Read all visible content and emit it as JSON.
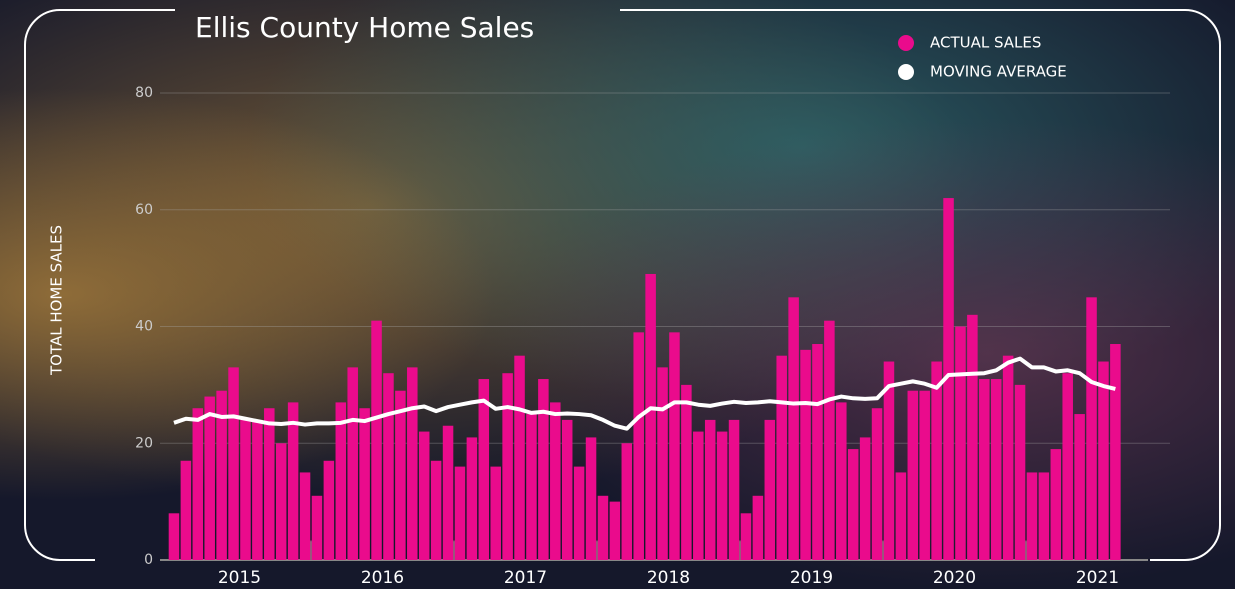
{
  "chart_data": {
    "type": "bar",
    "title": "Ellis County Home Sales",
    "y_label": "TOTAL HOME SALES",
    "categories": [
      "2015",
      null,
      null,
      null,
      null,
      null,
      null,
      null,
      null,
      null,
      null,
      null,
      "2016",
      null,
      null,
      null,
      null,
      null,
      null,
      null,
      null,
      null,
      null,
      null,
      "2017",
      null,
      null,
      null,
      null,
      null,
      null,
      null,
      null,
      null,
      null,
      null,
      "2018",
      null,
      null,
      null,
      null,
      null,
      null,
      null,
      null,
      null,
      null,
      null,
      "2019",
      null,
      null,
      null,
      null,
      null,
      null,
      null,
      null,
      null,
      null,
      null,
      "2020",
      null,
      null,
      null,
      null,
      null,
      null,
      null,
      null,
      null,
      null,
      null,
      "2021",
      null,
      null,
      null,
      null,
      null,
      null,
      null
    ],
    "series": [
      {
        "name": "ACTUAL SALES",
        "type": "bar",
        "color": "#ea0b8c",
        "values": [
          8,
          17,
          26,
          28,
          29,
          33,
          24,
          24,
          26,
          20,
          27,
          15,
          11,
          17,
          27,
          33,
          26,
          41,
          32,
          29,
          33,
          22,
          17,
          23,
          16,
          21,
          31,
          16,
          32,
          35,
          25,
          31,
          27,
          24,
          16,
          21,
          11,
          10,
          20,
          39,
          49,
          33,
          39,
          30,
          22,
          24,
          22,
          24,
          8,
          11,
          24,
          35,
          45,
          36,
          37,
          41,
          27,
          19,
          21,
          26,
          34,
          15,
          29,
          29,
          34,
          62,
          40,
          42,
          31,
          31,
          35,
          30,
          15,
          15,
          19,
          32,
          25,
          45,
          34,
          37
        ]
      },
      {
        "name": "MOVING AVERAGE",
        "type": "line",
        "color": "#ffffff",
        "values": [
          23.5,
          24.2,
          24,
          25,
          24.5,
          24.6,
          24.2,
          23.8,
          23.4,
          23.3,
          23.5,
          23.2,
          23.4,
          23.4,
          23.5,
          24,
          23.8,
          24.4,
          25,
          25.5,
          26,
          26.3,
          25.5,
          26.2,
          26.6,
          27,
          27.3,
          25.9,
          26.2,
          25.8,
          25.2,
          25.4,
          25,
          25.1,
          25,
          24.8,
          24,
          23,
          22.5,
          24.5,
          26,
          25.8,
          27,
          27,
          26.6,
          26.4,
          26.8,
          27.1,
          26.9,
          27,
          27.2,
          27,
          26.8,
          26.9,
          26.7,
          27.5,
          28,
          27.7,
          27.6,
          27.7,
          29.8,
          30.2,
          30.6,
          30.2,
          29.5,
          31.7,
          31.8,
          31.9,
          32,
          32.5,
          33.8,
          34.5,
          33,
          33,
          32.3,
          32.5,
          32,
          30.5,
          29.8,
          29.3
        ]
      }
    ],
    "ylim": [
      0,
      80
    ],
    "yticks": [
      0,
      20,
      40,
      60,
      80
    ],
    "grid": true
  }
}
